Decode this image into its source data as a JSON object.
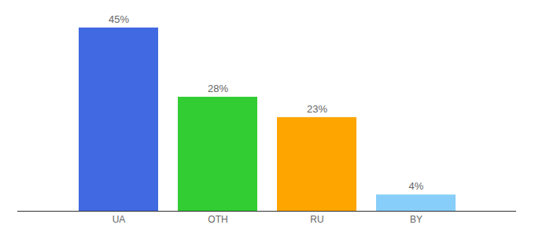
{
  "chart_data": {
    "type": "bar",
    "categories": [
      "UA",
      "OTH",
      "RU",
      "BY"
    ],
    "values": [
      45,
      28,
      23,
      4
    ],
    "value_labels": [
      "45%",
      "28%",
      "23%",
      "4%"
    ],
    "colors": [
      "#4169e1",
      "#32cd32",
      "#ffa500",
      "#87cefa"
    ],
    "ylim": [
      0,
      45
    ],
    "data_labels": true,
    "tick_labels": "x",
    "grid": false
  }
}
